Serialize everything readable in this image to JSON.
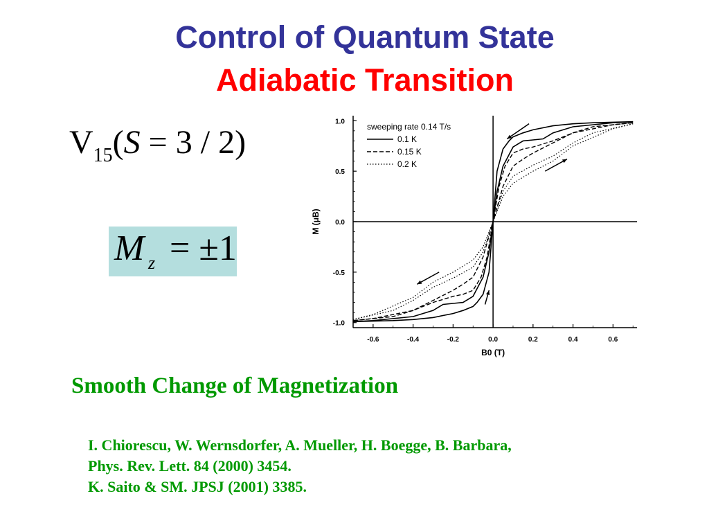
{
  "slide": {
    "title_line1": "Control of Quantum State",
    "title_line2": "Adiabatic Transition",
    "formula": {
      "base": "V",
      "subscript": "15",
      "open": "(",
      "var": "S",
      "rest": " = 3 / 2)"
    },
    "mz": {
      "symbol": "M",
      "subscript": "z",
      "value": "= ±1"
    },
    "subtitle": "Smooth Change of Magnetization",
    "references": [
      "I. Chiorescu, W. Wernsdorfer, A. Mueller, H. Boegge, B. Barbara,",
      "Phys. Rev. Lett. 84 (2000) 3454.",
      "K. Saito & SM. JPSJ (2001) 3385."
    ],
    "colors": {
      "title1": "#333399",
      "title2": "#ff0000",
      "green": "#009900",
      "mz_box": "#b4dede"
    }
  },
  "chart_data": {
    "type": "line",
    "xlabel": "B0 (T)",
    "ylabel": "M (μB)",
    "xlim": [
      -0.7,
      0.72
    ],
    "ylim": [
      -1.05,
      1.05
    ],
    "x_ticks": [
      -0.6,
      -0.4,
      -0.2,
      0.0,
      0.2,
      0.4,
      0.6
    ],
    "x_tick_labels": [
      "-0.6",
      "-0.4",
      "-0.2",
      "0.0",
      "0.2",
      "0.4",
      "0.6"
    ],
    "y_ticks": [
      1.0,
      0.5,
      0.0,
      -0.5,
      -1.0
    ],
    "y_tick_labels": [
      "1.0",
      "0.5",
      "0.0",
      "-0.5",
      "-1.0"
    ],
    "legend_title": "sweeping rate 0.14 T/s",
    "legend_position": "top-left",
    "series": [
      {
        "name": "0.1 K",
        "style": "solid",
        "x": [
          -0.7,
          -0.6,
          -0.4,
          -0.3,
          -0.25,
          -0.2,
          -0.15,
          -0.1,
          -0.05,
          -0.02,
          0.0,
          0.02,
          0.05,
          0.08,
          0.1,
          0.15,
          0.2,
          0.3,
          0.4,
          0.5,
          0.7
        ],
        "y": [
          -0.99,
          -0.98,
          -0.94,
          -0.88,
          -0.82,
          -0.81,
          -0.8,
          -0.74,
          -0.55,
          -0.3,
          0.0,
          0.5,
          0.72,
          0.8,
          0.84,
          0.88,
          0.91,
          0.95,
          0.97,
          0.98,
          0.99
        ]
      },
      {
        "name": "0.15 K",
        "style": "dashed",
        "x": [
          -0.7,
          -0.6,
          -0.4,
          -0.3,
          -0.2,
          -0.15,
          -0.1,
          -0.05,
          0.0,
          0.03,
          0.06,
          0.1,
          0.15,
          0.2,
          0.3,
          0.4,
          0.5,
          0.7
        ],
        "y": [
          -0.98,
          -0.96,
          -0.88,
          -0.78,
          -0.68,
          -0.62,
          -0.55,
          -0.35,
          0.0,
          0.35,
          0.55,
          0.68,
          0.72,
          0.74,
          0.8,
          0.88,
          0.94,
          0.98
        ]
      },
      {
        "name": "0.2 K",
        "style": "dotted",
        "x": [
          -0.7,
          -0.6,
          -0.4,
          -0.3,
          -0.2,
          -0.1,
          -0.05,
          0.0,
          0.05,
          0.1,
          0.2,
          0.3,
          0.4,
          0.5,
          0.7
        ],
        "y": [
          -0.97,
          -0.92,
          -0.75,
          -0.6,
          -0.5,
          -0.38,
          -0.25,
          0.0,
          0.3,
          0.45,
          0.56,
          0.65,
          0.78,
          0.88,
          0.97
        ]
      }
    ]
  }
}
